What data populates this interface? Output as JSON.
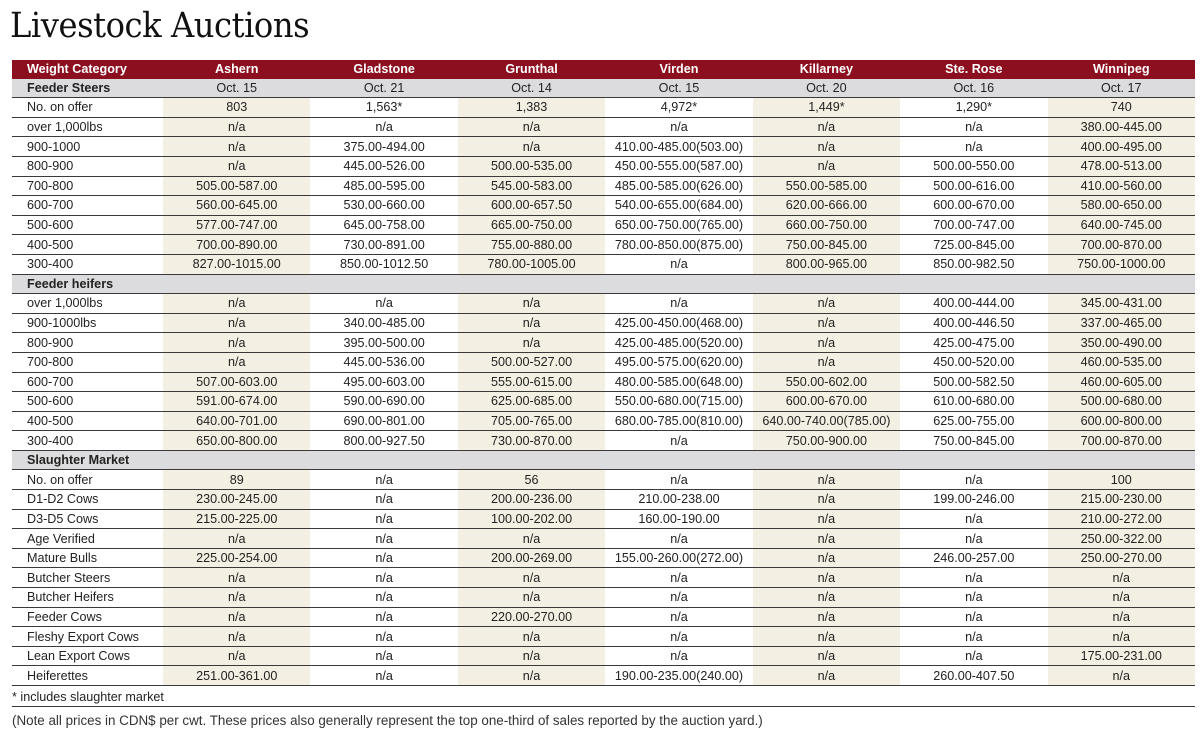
{
  "title": "Livestock Auctions",
  "colors": {
    "header_bg": "#8c0f1f",
    "section_bg": "#dcdcde",
    "shaded_column": "#f3efe2"
  },
  "table": {
    "headers": [
      "Weight Category",
      "Ashern",
      "Gladstone",
      "Grunthal",
      "Virden",
      "Killarney",
      "Ste. Rose",
      "Winnipeg"
    ],
    "sections": [
      {
        "title": "Feeder Steers",
        "dates": [
          "Oct. 15",
          "Oct. 21",
          "Oct. 14",
          "Oct. 15",
          "Oct. 20",
          "Oct. 16",
          "Oct. 17"
        ],
        "rows": [
          {
            "label": "No. on offer",
            "values": [
              "803",
              "1,563*",
              "1,383",
              "4,972*",
              "1,449*",
              "1,290*",
              "740"
            ]
          },
          {
            "label": "over 1,000lbs",
            "values": [
              "n/a",
              "n/a",
              "n/a",
              "n/a",
              "n/a",
              "n/a",
              "380.00-445.00"
            ]
          },
          {
            "label": "900-1000",
            "values": [
              "n/a",
              "375.00-494.00",
              "n/a",
              "410.00-485.00(503.00)",
              "n/a",
              "n/a",
              "400.00-495.00"
            ]
          },
          {
            "label": "800-900",
            "values": [
              "n/a",
              "445.00-526.00",
              "500.00-535.00",
              "450.00-555.00(587.00)",
              "n/a",
              "500.00-550.00",
              "478.00-513.00"
            ]
          },
          {
            "label": "700-800",
            "values": [
              "505.00-587.00",
              "485.00-595.00",
              "545.00-583.00",
              "485.00-585.00(626.00)",
              "550.00-585.00",
              "500.00-616.00",
              "410.00-560.00"
            ]
          },
          {
            "label": "600-700",
            "values": [
              "560.00-645.00",
              "530.00-660.00",
              "600.00-657.50",
              "540.00-655.00(684.00)",
              "620.00-666.00",
              "600.00-670.00",
              "580.00-650.00"
            ]
          },
          {
            "label": "500-600",
            "values": [
              "577.00-747.00",
              "645.00-758.00",
              "665.00-750.00",
              "650.00-750.00(765.00)",
              "660.00-750.00",
              "700.00-747.00",
              "640.00-745.00"
            ]
          },
          {
            "label": "400-500",
            "values": [
              "700.00-890.00",
              "730.00-891.00",
              "755.00-880.00",
              "780.00-850.00(875.00)",
              "750.00-845.00",
              "725.00-845.00",
              "700.00-870.00"
            ]
          },
          {
            "label": "300-400",
            "values": [
              "827.00-1015.00",
              "850.00-1012.50",
              "780.00-1005.00",
              "n/a",
              "800.00-965.00",
              "850.00-982.50",
              "750.00-1000.00"
            ]
          }
        ]
      },
      {
        "title": "Feeder heifers",
        "rows": [
          {
            "label": "over 1,000lbs",
            "values": [
              "n/a",
              "n/a",
              "n/a",
              "n/a",
              "n/a",
              "400.00-444.00",
              "345.00-431.00"
            ]
          },
          {
            "label": "900-1000lbs",
            "values": [
              "n/a",
              "340.00-485.00",
              "n/a",
              "425.00-450.00(468.00)",
              "n/a",
              "400.00-446.50",
              "337.00-465.00"
            ]
          },
          {
            "label": "800-900",
            "values": [
              "n/a",
              "395.00-500.00",
              "n/a",
              "425.00-485.00(520.00)",
              "n/a",
              "425.00-475.00",
              "350.00-490.00"
            ]
          },
          {
            "label": "700-800",
            "values": [
              "n/a",
              "445.00-536.00",
              "500.00-527.00",
              "495.00-575.00(620.00)",
              "n/a",
              "450.00-520.00",
              "460.00-535.00"
            ]
          },
          {
            "label": "600-700",
            "values": [
              "507.00-603.00",
              "495.00-603.00",
              "555.00-615.00",
              "480.00-585.00(648.00)",
              "550.00-602.00",
              "500.00-582.50",
              "460.00-605.00"
            ]
          },
          {
            "label": "500-600",
            "values": [
              "591.00-674.00",
              "590.00-690.00",
              "625.00-685.00",
              "550.00-680.00(715.00)",
              "600.00-670.00",
              "610.00-680.00",
              "500.00-680.00"
            ]
          },
          {
            "label": "400-500",
            "values": [
              "640.00-701.00",
              "690.00-801.00",
              "705.00-765.00",
              "680.00-785.00(810.00)",
              "640.00-740.00(785.00)",
              "625.00-755.00",
              "600.00-800.00"
            ]
          },
          {
            "label": "300-400",
            "values": [
              "650.00-800.00",
              "800.00-927.50",
              "730.00-870.00",
              "n/a",
              "750.00-900.00",
              "750.00-845.00",
              "700.00-870.00"
            ]
          }
        ]
      },
      {
        "title": "Slaughter Market",
        "rows": [
          {
            "label": "No. on offer",
            "values": [
              "89",
              "n/a",
              "56",
              "n/a",
              "n/a",
              "n/a",
              "100"
            ]
          },
          {
            "label": "D1-D2 Cows",
            "values": [
              "230.00-245.00",
              "n/a",
              "200.00-236.00",
              "210.00-238.00",
              "n/a",
              "199.00-246.00",
              "215.00-230.00"
            ]
          },
          {
            "label": "D3-D5 Cows",
            "values": [
              "215.00-225.00",
              "n/a",
              "100.00-202.00",
              "160.00-190.00",
              "n/a",
              "n/a",
              "210.00-272.00"
            ]
          },
          {
            "label": "Age Verified",
            "values": [
              "n/a",
              "n/a",
              "n/a",
              "n/a",
              "n/a",
              "n/a",
              "250.00-322.00"
            ]
          },
          {
            "label": "Mature Bulls",
            "values": [
              "225.00-254.00",
              "n/a",
              "200.00-269.00",
              "155.00-260.00(272.00)",
              "n/a",
              "246.00-257.00",
              "250.00-270.00"
            ]
          },
          {
            "label": "Butcher Steers",
            "values": [
              "n/a",
              "n/a",
              "n/a",
              "n/a",
              "n/a",
              "n/a",
              "n/a"
            ]
          },
          {
            "label": "Butcher Heifers",
            "values": [
              "n/a",
              "n/a",
              "n/a",
              "n/a",
              "n/a",
              "n/a",
              "n/a"
            ]
          },
          {
            "label": "Feeder Cows",
            "values": [
              "n/a",
              "n/a",
              "220.00-270.00",
              "n/a",
              "n/a",
              "n/a",
              "n/a"
            ]
          },
          {
            "label": "Fleshy Export Cows",
            "values": [
              "n/a",
              "n/a",
              "n/a",
              "n/a",
              "n/a",
              "n/a",
              "n/a"
            ]
          },
          {
            "label": "Lean Export Cows",
            "values": [
              "n/a",
              "n/a",
              "n/a",
              "n/a",
              "n/a",
              "n/a",
              "175.00-231.00"
            ]
          },
          {
            "label": "Heiferettes",
            "values": [
              "251.00-361.00",
              "n/a",
              "n/a",
              "190.00-235.00(240.00)",
              "n/a",
              "260.00-407.50",
              "n/a"
            ]
          }
        ]
      }
    ]
  },
  "footnote": "* includes slaughter market",
  "note": "(Note all prices in CDN$ per cwt. These prices also generally represent the top one-third of sales reported by the auction yard.)"
}
